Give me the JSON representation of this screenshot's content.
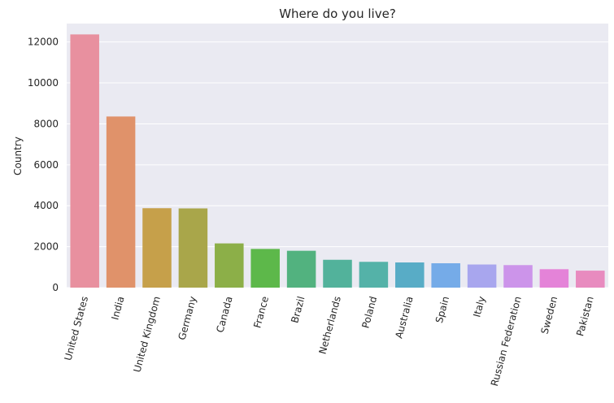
{
  "chart_data": {
    "type": "bar",
    "title": "Where do you live?",
    "xlabel": "",
    "ylabel": "Country",
    "ylim": [
      0,
      12900
    ],
    "yticks": [
      0,
      2000,
      4000,
      6000,
      8000,
      10000,
      12000
    ],
    "ytick_labels": [
      "0",
      "2000",
      "4000",
      "6000",
      "8000",
      "10000",
      "12000"
    ],
    "grid": true,
    "categories": [
      "United States",
      "India",
      "United Kingdom",
      "Germany",
      "Canada",
      "France",
      "Brazil",
      "Netherlands",
      "Poland",
      "Australia",
      "Spain",
      "Italy",
      "Russian Federation",
      "Sweden",
      "Pakistan"
    ],
    "values": [
      12370,
      8360,
      3880,
      3870,
      2160,
      1890,
      1800,
      1360,
      1260,
      1230,
      1190,
      1130,
      1100,
      900,
      830
    ],
    "colors": [
      "#e8909f",
      "#e0926a",
      "#c6a04a",
      "#a9a64a",
      "#8caf48",
      "#5db84a",
      "#52b27f",
      "#52b29b",
      "#54b2a8",
      "#58acc6",
      "#75abe8",
      "#a8a6ee",
      "#cc94ea",
      "#e483d8",
      "#e88bbf"
    ],
    "background": "#eaeaf2",
    "grid_color": "#ffffff"
  }
}
